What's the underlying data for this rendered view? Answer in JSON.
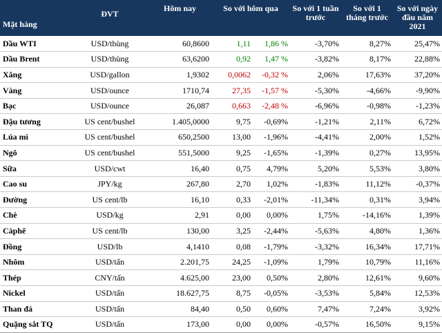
{
  "colors": {
    "header_bg": "#17375e",
    "header_text": "#ffffff",
    "increase": "#008000",
    "decrease": "#c00000"
  },
  "headers": {
    "item": "Mặt hàng",
    "unit": "ĐVT",
    "today": "Hôm nay",
    "vs_yesterday": "So với hôm qua",
    "vs_week": "So với 1 tuần trước",
    "vs_month": "So với 1 tháng trước",
    "vs_ytd": "So với ngày đầu năm 2021"
  },
  "rows": [
    {
      "name": "Dầu WTI",
      "unit": "USD/thùng",
      "today": "60,8600",
      "chg": "1,11",
      "chg_pct": "1,86 %",
      "trend": "up",
      "week": "-3,70%",
      "month": "8,27%",
      "ytd": "25,47%"
    },
    {
      "name": "Dầu Brent",
      "unit": "USD/thùng",
      "today": "63,6200",
      "chg": "0,92",
      "chg_pct": "1,47 %",
      "trend": "up",
      "week": "-3,82%",
      "month": "8,17%",
      "ytd": "22,88%"
    },
    {
      "name": "Xăng",
      "unit": "USD/gallon",
      "today": "1,9302",
      "chg": "0,0062",
      "chg_pct": "-0,32 %",
      "trend": "down",
      "week": "2,06%",
      "month": "17,63%",
      "ytd": "37,20%"
    },
    {
      "name": "Vàng",
      "unit": "USD/ounce",
      "today": "1710,74",
      "chg": "27,35",
      "chg_pct": "-1,57 %",
      "trend": "down",
      "week": "-5,30%",
      "month": "-4,66%",
      "ytd": "-9,90%"
    },
    {
      "name": "Bạc",
      "unit": "USD/ounce",
      "today": "26,087",
      "chg": "0,663",
      "chg_pct": "-2,48 %",
      "trend": "down",
      "week": "-6,96%",
      "month": "-0,98%",
      "ytd": "-1,23%"
    },
    {
      "name": "Đậu tương",
      "unit": "US cent/bushel",
      "today": "1.405,0000",
      "chg": "9,75",
      "chg_pct": "-0,69%",
      "trend": "",
      "week": "-1,21%",
      "month": "2,11%",
      "ytd": "6,72%"
    },
    {
      "name": "Lúa mì",
      "unit": "US cent/bushel",
      "today": "650,2500",
      "chg": "13,00",
      "chg_pct": "-1,96%",
      "trend": "",
      "week": "-4,41%",
      "month": "2,00%",
      "ytd": "1,52%"
    },
    {
      "name": "Ngô",
      "unit": "US cent/bushel",
      "today": "551,5000",
      "chg": "9,25",
      "chg_pct": "-1,65%",
      "trend": "",
      "week": "-1,39%",
      "month": "0,27%",
      "ytd": "13,95%"
    },
    {
      "name": "Sữa",
      "unit": "USD/cwt",
      "today": "16,40",
      "chg": "0,75",
      "chg_pct": "4,79%",
      "trend": "",
      "week": "5,20%",
      "month": "5,53%",
      "ytd": "3,80%"
    },
    {
      "name": "Cao su",
      "unit": "JPY/kg",
      "today": "267,80",
      "chg": "2,70",
      "chg_pct": "1,02%",
      "trend": "",
      "week": "-1,83%",
      "month": "11,12%",
      "ytd": "-0,37%"
    },
    {
      "name": "Đường",
      "unit": "US cent/lb",
      "today": "16,10",
      "chg": "0,33",
      "chg_pct": "-2,01%",
      "trend": "",
      "week": "-11,34%",
      "month": "0,31%",
      "ytd": "3,94%"
    },
    {
      "name": "Chè",
      "unit": "USD/kg",
      "today": "2,91",
      "chg": "0,00",
      "chg_pct": "0,00%",
      "trend": "",
      "week": "1,75%",
      "month": "-14,16%",
      "ytd": "1,39%"
    },
    {
      "name": "Càphê",
      "unit": "US cent/lb",
      "today": "130,00",
      "chg": "3,25",
      "chg_pct": "-2,44%",
      "trend": "",
      "week": "-5,63%",
      "month": "4,80%",
      "ytd": "1,36%"
    },
    {
      "name": "Đồng",
      "unit": "USD/lb",
      "today": "4,1410",
      "chg": "0,08",
      "chg_pct": "-1,79%",
      "trend": "",
      "week": "-3,32%",
      "month": "16,34%",
      "ytd": "17,71%"
    },
    {
      "name": "Nhôm",
      "unit": "USD/tấn",
      "today": "2.201,75",
      "chg": "24,25",
      "chg_pct": "-1,09%",
      "trend": "",
      "week": "1,79%",
      "month": "10,79%",
      "ytd": "11,16%"
    },
    {
      "name": "Thép",
      "unit": "CNY/tấn",
      "today": "4.625,00",
      "chg": "23,00",
      "chg_pct": "0,50%",
      "trend": "",
      "week": "2,80%",
      "month": "12,61%",
      "ytd": "9,60%"
    },
    {
      "name": "Nickel",
      "unit": "USD/tấn",
      "today": "18.627,75",
      "chg": "8,75",
      "chg_pct": "-0,05%",
      "trend": "",
      "week": "-3,53%",
      "month": "5,84%",
      "ytd": "12,53%"
    },
    {
      "name": "Than đá",
      "unit": "USD/tấn",
      "today": "84,40",
      "chg": "0,50",
      "chg_pct": "0,60%",
      "trend": "",
      "week": "7,47%",
      "month": "7,24%",
      "ytd": "3,92%"
    },
    {
      "name": "Quặng sắt TQ",
      "unit": "USD/tấn",
      "today": "173,00",
      "chg": "0,00",
      "chg_pct": "0,00%",
      "trend": "",
      "week": "-0,57%",
      "month": "16,50%",
      "ytd": "9,15%"
    }
  ]
}
